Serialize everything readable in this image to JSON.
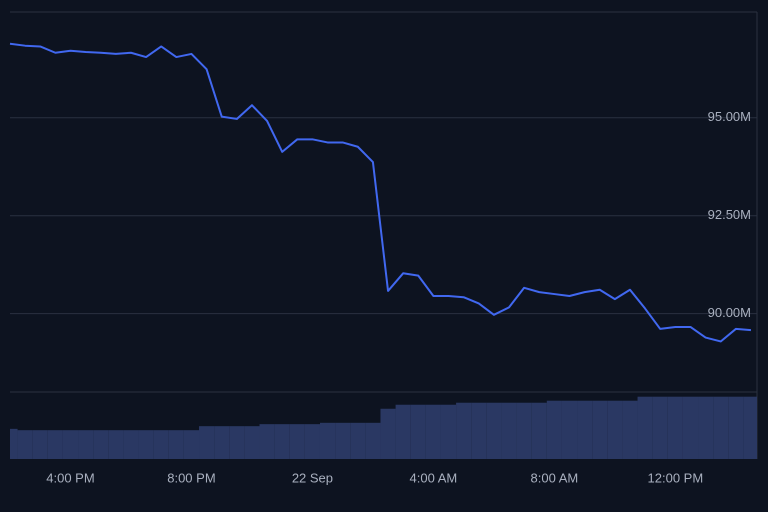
{
  "chart_data": {
    "type": "line",
    "categories": [
      null,
      null,
      null,
      null,
      "4:00 PM",
      null,
      null,
      null,
      null,
      null,
      null,
      null,
      "8:00 PM",
      null,
      null,
      null,
      null,
      null,
      null,
      null,
      "22 Sep",
      null,
      null,
      null,
      null,
      null,
      null,
      null,
      "4:00 AM",
      null,
      null,
      null,
      null,
      null,
      null,
      null,
      "8:00 AM",
      null,
      null,
      null,
      null,
      null,
      null,
      null,
      "12:00 PM",
      null,
      null,
      null,
      null,
      null
    ],
    "series": [
      {
        "color": "#4168f0",
        "values": [
          96890000,
          96840000,
          96820000,
          96660000,
          96710000,
          96680000,
          96660000,
          96630000,
          96660000,
          96550000,
          96820000,
          96550000,
          96630000,
          96240000,
          95030000,
          94970000,
          95320000,
          94920000,
          94130000,
          94450000,
          94450000,
          94370000,
          94370000,
          94260000,
          93870000,
          90580000,
          91030000,
          90970000,
          90450000,
          90450000,
          90420000,
          90260000,
          89970000,
          90160000,
          90660000,
          90550000,
          90500000,
          90450000,
          90550000,
          90610000,
          90370000,
          90610000,
          90130000,
          89610000,
          89660000,
          89660000,
          89390000,
          89290000,
          89610000,
          89580000
        ]
      },
      {
        "type": "bar",
        "axis": "y2",
        "color": "#2a3863",
        "values": [
          45,
          43,
          43,
          43,
          43,
          43,
          43,
          43,
          43,
          43,
          43,
          43,
          43,
          49,
          49,
          49,
          49,
          52,
          52,
          52,
          52,
          54,
          54,
          54,
          54,
          75,
          81,
          81,
          81,
          81,
          84,
          84,
          84,
          84,
          84,
          84,
          87,
          87,
          87,
          87,
          87,
          87,
          93,
          93,
          93,
          93,
          93,
          93,
          93,
          93
        ]
      }
    ],
    "ylim": [
      88000000,
      97700000
    ],
    "yticks": [
      {
        "value": 90000000,
        "label": "90.00M"
      },
      {
        "value": 92500000,
        "label": "92.50M"
      },
      {
        "value": 95000000,
        "label": "95.00M"
      }
    ],
    "y2lim": [
      0,
      100
    ],
    "grid": true
  }
}
